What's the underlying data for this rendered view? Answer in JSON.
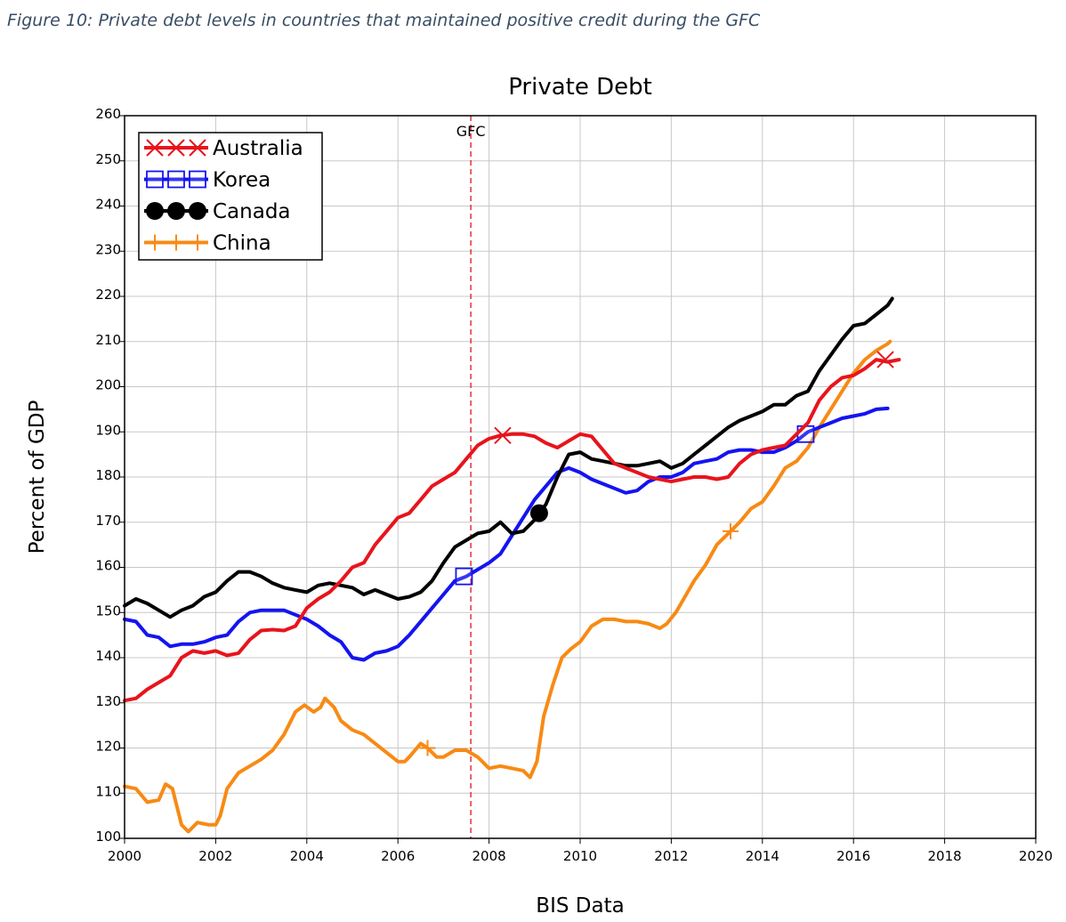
{
  "figure_caption": "Figure 10: Private debt levels in countries that maintained positive credit during the GFC",
  "chart_data": {
    "type": "line",
    "title": "Private Debt",
    "xlabel": "BIS Data",
    "ylabel": "Percent of GDP",
    "xlim": [
      2000,
      2020
    ],
    "ylim": [
      100,
      260
    ],
    "x_ticks": [
      "2000",
      "2002",
      "2004",
      "2006",
      "2008",
      "2010",
      "2012",
      "2014",
      "2016",
      "2018",
      "2020"
    ],
    "y_ticks": [
      "100",
      "110",
      "120",
      "130",
      "140",
      "150",
      "160",
      "170",
      "180",
      "190",
      "200",
      "210",
      "220",
      "230",
      "240",
      "250",
      "260"
    ],
    "grid": true,
    "legend_position": "top-left",
    "annotations": [
      {
        "label": "GFC",
        "x": 2007.6,
        "style": "dashed-vertical-line",
        "color": "#e0121c"
      }
    ],
    "series": [
      {
        "name": "Australia",
        "color": "#e8141c",
        "marker": "x",
        "markers_at": [
          [
            2008.3,
            189.2
          ],
          [
            2016.7,
            206
          ]
        ],
        "points": [
          [
            2000,
            130.5
          ],
          [
            2000.25,
            131
          ],
          [
            2000.5,
            133
          ],
          [
            2000.75,
            134.5
          ],
          [
            2001,
            136
          ],
          [
            2001.25,
            140
          ],
          [
            2001.5,
            141.5
          ],
          [
            2001.75,
            141
          ],
          [
            2002,
            141.5
          ],
          [
            2002.25,
            140.5
          ],
          [
            2002.5,
            141
          ],
          [
            2002.75,
            144
          ],
          [
            2003,
            146
          ],
          [
            2003.25,
            146.2
          ],
          [
            2003.5,
            146
          ],
          [
            2003.75,
            147
          ],
          [
            2004,
            151
          ],
          [
            2004.25,
            153
          ],
          [
            2004.5,
            154.5
          ],
          [
            2004.75,
            157
          ],
          [
            2005,
            160
          ],
          [
            2005.25,
            161
          ],
          [
            2005.5,
            165
          ],
          [
            2005.75,
            168
          ],
          [
            2006,
            171
          ],
          [
            2006.25,
            172
          ],
          [
            2006.5,
            175
          ],
          [
            2006.75,
            178
          ],
          [
            2007,
            179.5
          ],
          [
            2007.25,
            181
          ],
          [
            2007.5,
            184
          ],
          [
            2007.75,
            187
          ],
          [
            2008,
            188.5
          ],
          [
            2008.25,
            189.2
          ],
          [
            2008.5,
            189.5
          ],
          [
            2008.75,
            189.5
          ],
          [
            2009,
            189
          ],
          [
            2009.25,
            187.5
          ],
          [
            2009.5,
            186.5
          ],
          [
            2009.75,
            188
          ],
          [
            2010,
            189.5
          ],
          [
            2010.25,
            189
          ],
          [
            2010.5,
            186
          ],
          [
            2010.75,
            183
          ],
          [
            2011,
            182
          ],
          [
            2011.25,
            181
          ],
          [
            2011.5,
            180
          ],
          [
            2011.75,
            179.5
          ],
          [
            2012,
            179
          ],
          [
            2012.25,
            179.5
          ],
          [
            2012.5,
            180
          ],
          [
            2012.75,
            180
          ],
          [
            2013,
            179.5
          ],
          [
            2013.25,
            180
          ],
          [
            2013.5,
            183
          ],
          [
            2013.75,
            185
          ],
          [
            2014,
            186
          ],
          [
            2014.25,
            186.5
          ],
          [
            2014.5,
            187
          ],
          [
            2014.75,
            189.5
          ],
          [
            2015,
            192
          ],
          [
            2015.25,
            197
          ],
          [
            2015.5,
            200
          ],
          [
            2015.75,
            202
          ],
          [
            2016,
            202.5
          ],
          [
            2016.25,
            204
          ],
          [
            2016.5,
            206
          ],
          [
            2016.75,
            205.5
          ],
          [
            2017,
            206
          ]
        ]
      },
      {
        "name": "Korea",
        "color": "#1414f0",
        "marker": "square",
        "markers_at": [
          [
            2007.45,
            158
          ],
          [
            2014.95,
            189.5
          ]
        ],
        "points": [
          [
            2000,
            148.5
          ],
          [
            2000.25,
            148
          ],
          [
            2000.5,
            145
          ],
          [
            2000.75,
            144.5
          ],
          [
            2001,
            142.5
          ],
          [
            2001.25,
            143
          ],
          [
            2001.5,
            143
          ],
          [
            2001.75,
            143.5
          ],
          [
            2002,
            144.5
          ],
          [
            2002.25,
            145
          ],
          [
            2002.5,
            148
          ],
          [
            2002.75,
            150
          ],
          [
            2003,
            150.5
          ],
          [
            2003.25,
            150.5
          ],
          [
            2003.5,
            150.5
          ],
          [
            2003.75,
            149.5
          ],
          [
            2004,
            148.5
          ],
          [
            2004.25,
            147
          ],
          [
            2004.5,
            145
          ],
          [
            2004.75,
            143.5
          ],
          [
            2005,
            140
          ],
          [
            2005.25,
            139.5
          ],
          [
            2005.5,
            141
          ],
          [
            2005.75,
            141.5
          ],
          [
            2006,
            142.5
          ],
          [
            2006.25,
            145
          ],
          [
            2006.5,
            148
          ],
          [
            2006.75,
            151
          ],
          [
            2007,
            154
          ],
          [
            2007.25,
            157
          ],
          [
            2007.5,
            158
          ],
          [
            2007.75,
            159.5
          ],
          [
            2008,
            161
          ],
          [
            2008.25,
            163
          ],
          [
            2008.5,
            167
          ],
          [
            2008.75,
            171
          ],
          [
            2009,
            175
          ],
          [
            2009.25,
            178
          ],
          [
            2009.5,
            181
          ],
          [
            2009.75,
            182
          ],
          [
            2010,
            181
          ],
          [
            2010.25,
            179.5
          ],
          [
            2010.5,
            178.5
          ],
          [
            2010.75,
            177.5
          ],
          [
            2011,
            176.5
          ],
          [
            2011.25,
            177
          ],
          [
            2011.5,
            179
          ],
          [
            2011.75,
            180
          ],
          [
            2012,
            180
          ],
          [
            2012.25,
            181
          ],
          [
            2012.5,
            183
          ],
          [
            2012.75,
            183.5
          ],
          [
            2013,
            184
          ],
          [
            2013.25,
            185.5
          ],
          [
            2013.5,
            186
          ],
          [
            2013.75,
            186
          ],
          [
            2014,
            185.5
          ],
          [
            2014.25,
            185.5
          ],
          [
            2014.5,
            186.5
          ],
          [
            2014.75,
            188
          ],
          [
            2015,
            190
          ],
          [
            2015.25,
            191
          ],
          [
            2015.5,
            192
          ],
          [
            2015.75,
            193
          ],
          [
            2016,
            193.5
          ],
          [
            2016.25,
            194
          ],
          [
            2016.5,
            195
          ],
          [
            2016.75,
            195.2
          ]
        ]
      },
      {
        "name": "Canada",
        "color": "#000000",
        "marker": "circle",
        "markers_at": [
          [
            2009.1,
            172
          ]
        ],
        "points": [
          [
            2000,
            151.5
          ],
          [
            2000.25,
            153
          ],
          [
            2000.5,
            152
          ],
          [
            2000.75,
            150.5
          ],
          [
            2001,
            149
          ],
          [
            2001.25,
            150.5
          ],
          [
            2001.5,
            151.5
          ],
          [
            2001.75,
            153.5
          ],
          [
            2002,
            154.5
          ],
          [
            2002.25,
            157
          ],
          [
            2002.5,
            159
          ],
          [
            2002.75,
            159
          ],
          [
            2003,
            158
          ],
          [
            2003.25,
            156.5
          ],
          [
            2003.5,
            155.5
          ],
          [
            2003.75,
            155
          ],
          [
            2004,
            154.5
          ],
          [
            2004.25,
            156
          ],
          [
            2004.5,
            156.5
          ],
          [
            2004.75,
            156
          ],
          [
            2005,
            155.5
          ],
          [
            2005.25,
            154
          ],
          [
            2005.5,
            155
          ],
          [
            2005.75,
            154
          ],
          [
            2006,
            153
          ],
          [
            2006.25,
            153.5
          ],
          [
            2006.5,
            154.5
          ],
          [
            2006.75,
            157
          ],
          [
            2007,
            161
          ],
          [
            2007.25,
            164.5
          ],
          [
            2007.5,
            166
          ],
          [
            2007.75,
            167.5
          ],
          [
            2008,
            168
          ],
          [
            2008.25,
            170
          ],
          [
            2008.5,
            167.5
          ],
          [
            2008.75,
            168
          ],
          [
            2009,
            170.5
          ],
          [
            2009.25,
            174
          ],
          [
            2009.5,
            180
          ],
          [
            2009.75,
            185
          ],
          [
            2010,
            185.5
          ],
          [
            2010.25,
            184
          ],
          [
            2010.5,
            183.5
          ],
          [
            2010.75,
            183
          ],
          [
            2011,
            182.5
          ],
          [
            2011.25,
            182.5
          ],
          [
            2011.5,
            183
          ],
          [
            2011.75,
            183.5
          ],
          [
            2012,
            182
          ],
          [
            2012.25,
            183
          ],
          [
            2012.5,
            185
          ],
          [
            2012.75,
            187
          ],
          [
            2013,
            189
          ],
          [
            2013.25,
            191
          ],
          [
            2013.5,
            192.5
          ],
          [
            2013.75,
            193.5
          ],
          [
            2014,
            194.5
          ],
          [
            2014.25,
            196
          ],
          [
            2014.5,
            196
          ],
          [
            2014.75,
            198
          ],
          [
            2015,
            199
          ],
          [
            2015.25,
            203.5
          ],
          [
            2015.5,
            207
          ],
          [
            2015.75,
            210.5
          ],
          [
            2016,
            213.5
          ],
          [
            2016.25,
            214
          ],
          [
            2016.5,
            216
          ],
          [
            2016.75,
            218
          ],
          [
            2016.85,
            219.5
          ]
        ]
      },
      {
        "name": "China",
        "color": "#f78a14",
        "marker": "plus",
        "markers_at": [
          [
            2006.65,
            120
          ],
          [
            2013.3,
            168
          ]
        ],
        "points": [
          [
            2000,
            111.5
          ],
          [
            2000.25,
            111
          ],
          [
            2000.5,
            108
          ],
          [
            2000.75,
            108.5
          ],
          [
            2000.9,
            112
          ],
          [
            2001.05,
            111
          ],
          [
            2001.25,
            103
          ],
          [
            2001.4,
            101.5
          ],
          [
            2001.6,
            103.5
          ],
          [
            2001.85,
            103
          ],
          [
            2002,
            103
          ],
          [
            2002.1,
            105
          ],
          [
            2002.25,
            111
          ],
          [
            2002.5,
            114.5
          ],
          [
            2002.75,
            116
          ],
          [
            2003,
            117.5
          ],
          [
            2003.25,
            119.5
          ],
          [
            2003.5,
            123
          ],
          [
            2003.75,
            128
          ],
          [
            2003.95,
            129.5
          ],
          [
            2004.15,
            128
          ],
          [
            2004.3,
            129
          ],
          [
            2004.4,
            131
          ],
          [
            2004.6,
            129
          ],
          [
            2004.75,
            126
          ],
          [
            2005,
            124
          ],
          [
            2005.25,
            123
          ],
          [
            2005.5,
            121
          ],
          [
            2005.75,
            119
          ],
          [
            2006,
            117
          ],
          [
            2006.15,
            117
          ],
          [
            2006.25,
            118
          ],
          [
            2006.5,
            121
          ],
          [
            2006.65,
            120
          ],
          [
            2006.85,
            118
          ],
          [
            2007,
            118
          ],
          [
            2007.25,
            119.5
          ],
          [
            2007.5,
            119.5
          ],
          [
            2007.75,
            118
          ],
          [
            2008,
            115.5
          ],
          [
            2008.25,
            116
          ],
          [
            2008.5,
            115.5
          ],
          [
            2008.75,
            115
          ],
          [
            2008.9,
            113.5
          ],
          [
            2009.05,
            117
          ],
          [
            2009.2,
            127
          ],
          [
            2009.4,
            134
          ],
          [
            2009.6,
            140
          ],
          [
            2009.8,
            142
          ],
          [
            2010,
            143.5
          ],
          [
            2010.25,
            147
          ],
          [
            2010.5,
            148.5
          ],
          [
            2010.75,
            148.5
          ],
          [
            2011,
            148
          ],
          [
            2011.25,
            148
          ],
          [
            2011.5,
            147.5
          ],
          [
            2011.75,
            146.5
          ],
          [
            2011.9,
            147.5
          ],
          [
            2012.1,
            150
          ],
          [
            2012.3,
            153.5
          ],
          [
            2012.5,
            157
          ],
          [
            2012.75,
            160.5
          ],
          [
            2013,
            165
          ],
          [
            2013.3,
            168
          ],
          [
            2013.5,
            170
          ],
          [
            2013.75,
            173
          ],
          [
            2014,
            174.5
          ],
          [
            2014.25,
            178
          ],
          [
            2014.5,
            182
          ],
          [
            2014.75,
            183.5
          ],
          [
            2015,
            186.5
          ],
          [
            2015.25,
            191
          ],
          [
            2015.5,
            195
          ],
          [
            2015.75,
            199
          ],
          [
            2016,
            203
          ],
          [
            2016.25,
            206
          ],
          [
            2016.5,
            208
          ],
          [
            2016.75,
            209.5
          ],
          [
            2016.8,
            210
          ]
        ]
      }
    ]
  }
}
